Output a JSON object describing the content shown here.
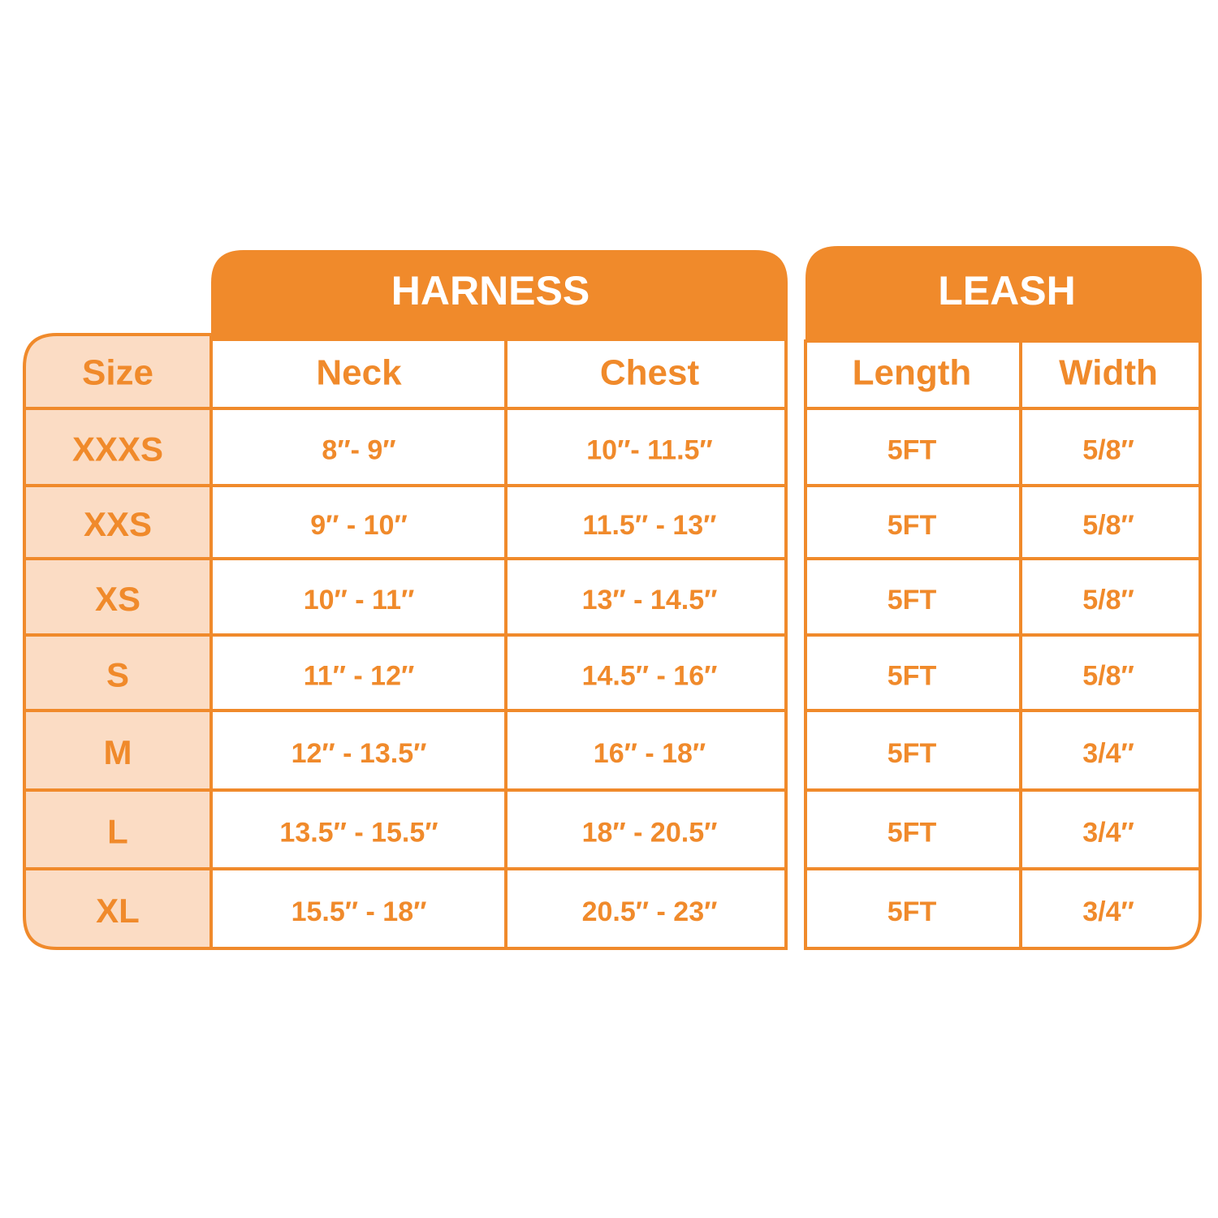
{
  "harness": {
    "title": "HARNESS"
  },
  "leash": {
    "title": "LEASH"
  },
  "table": {
    "header": [
      "Size",
      "Neck",
      "Chest",
      "Length",
      "Width"
    ],
    "rows": [
      [
        "XXXS",
        "8″- 9″",
        "10″- 11.5″",
        "5FT",
        "5/8″"
      ],
      [
        "XXS",
        "9″ - 10″",
        "11.5″ - 13″",
        "5FT",
        "5/8″"
      ],
      [
        "XS",
        "10″ - 11″",
        "13″ - 14.5″",
        "5FT",
        "5/8″"
      ],
      [
        "S",
        "11″ - 12″",
        "14.5″ - 16″",
        "5FT",
        "5/8″"
      ],
      [
        "M",
        "12″ - 13.5″",
        "16″ - 18″",
        "5FT",
        "3/4″"
      ],
      [
        "L",
        "13.5″ - 15.5″",
        "18″ - 20.5″",
        "5FT",
        "3/4″"
      ],
      [
        "XL",
        "15.5″ - 18″",
        "20.5″ - 23″",
        "5FT",
        "3/4″"
      ]
    ]
  }
}
